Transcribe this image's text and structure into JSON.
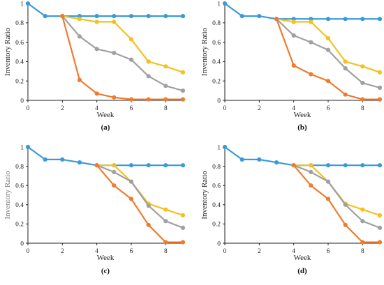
{
  "colors": {
    "blue": "#3a9ad9",
    "orange": "#ee7b2e",
    "gray": "#a0a0a0",
    "yellow": "#f5c020",
    "axis": "#222222",
    "ylabel_gray": "#7a7a7a"
  },
  "chart_data": [
    {
      "type": "line",
      "panel_label": "(a)",
      "xlabel": "Week",
      "ylabel": "Inventory Ratio",
      "ylabel_color": "dark",
      "xlim": [
        0,
        9
      ],
      "ylim": [
        0,
        1
      ],
      "xticks": [
        "0",
        "2",
        "4",
        "6",
        "8"
      ],
      "yticks": [
        "0",
        "0.2",
        "0.4",
        "0.6",
        "0.8",
        "1"
      ],
      "x": [
        0,
        1,
        2,
        3,
        4,
        5,
        6,
        7,
        8,
        9
      ],
      "series": [
        {
          "color_key": "blue",
          "start_index": 0,
          "values": [
            1,
            0.87,
            0.87,
            0.87,
            0.87,
            0.87,
            0.87,
            0.87,
            0.87,
            0.87
          ]
        },
        {
          "color_key": "yellow",
          "start_index": 2,
          "values": [
            1,
            0.87,
            0.87,
            0.84,
            0.81,
            0.81,
            0.63,
            0.4,
            0.35,
            0.29
          ]
        },
        {
          "color_key": "gray",
          "start_index": 2,
          "values": [
            1,
            0.87,
            0.87,
            0.66,
            0.53,
            0.49,
            0.42,
            0.25,
            0.15,
            0.1
          ]
        },
        {
          "color_key": "orange",
          "start_index": 2,
          "values": [
            1,
            0.87,
            0.87,
            0.21,
            0.07,
            0.03,
            0.01,
            0.01,
            0.01,
            0.01
          ]
        }
      ]
    },
    {
      "type": "line",
      "panel_label": "(b)",
      "xlabel": "Week",
      "ylabel": "Inventory Ratio",
      "ylabel_color": "dark",
      "xlim": [
        0,
        9
      ],
      "ylim": [
        0,
        1
      ],
      "xticks": [
        "0",
        "2",
        "4",
        "6",
        "8"
      ],
      "yticks": [
        "0",
        "0.2",
        "0.4",
        "0.6",
        "0.8",
        "1"
      ],
      "x": [
        0,
        1,
        2,
        3,
        4,
        5,
        6,
        7,
        8,
        9
      ],
      "series": [
        {
          "color_key": "blue",
          "start_index": 0,
          "values": [
            1,
            0.87,
            0.87,
            0.84,
            0.84,
            0.84,
            0.84,
            0.84,
            0.84,
            0.84
          ]
        },
        {
          "color_key": "yellow",
          "start_index": 3,
          "values": [
            1,
            0.87,
            0.87,
            0.84,
            0.81,
            0.81,
            0.64,
            0.4,
            0.35,
            0.29
          ]
        },
        {
          "color_key": "gray",
          "start_index": 3,
          "values": [
            1,
            0.87,
            0.87,
            0.84,
            0.67,
            0.6,
            0.52,
            0.33,
            0.18,
            0.13
          ]
        },
        {
          "color_key": "orange",
          "start_index": 3,
          "values": [
            1,
            0.87,
            0.87,
            0.84,
            0.36,
            0.27,
            0.2,
            0.06,
            0.01,
            0.01
          ]
        }
      ]
    },
    {
      "type": "line",
      "panel_label": "(c)",
      "xlabel": "Week",
      "ylabel": "Inventory Ratio",
      "ylabel_color": "gray",
      "xlim": [
        0,
        9
      ],
      "ylim": [
        0,
        1
      ],
      "xticks": [
        "0",
        "2",
        "4",
        "6",
        "8"
      ],
      "yticks": [
        "0",
        "0.2",
        "0.4",
        "0.6",
        "0.8",
        "1"
      ],
      "x": [
        0,
        1,
        2,
        3,
        4,
        5,
        6,
        7,
        8,
        9
      ],
      "series": [
        {
          "color_key": "blue",
          "start_index": 0,
          "values": [
            1,
            0.87,
            0.87,
            0.84,
            0.81,
            0.81,
            0.81,
            0.81,
            0.81,
            0.81
          ]
        },
        {
          "color_key": "yellow",
          "start_index": 4,
          "values": [
            1,
            0.87,
            0.87,
            0.84,
            0.81,
            0.81,
            0.64,
            0.41,
            0.35,
            0.29
          ]
        },
        {
          "color_key": "gray",
          "start_index": 4,
          "values": [
            1,
            0.87,
            0.87,
            0.84,
            0.81,
            0.74,
            0.64,
            0.39,
            0.23,
            0.16
          ]
        },
        {
          "color_key": "orange",
          "start_index": 4,
          "values": [
            1,
            0.87,
            0.87,
            0.84,
            0.81,
            0.6,
            0.46,
            0.19,
            0.01,
            0.01
          ]
        }
      ]
    },
    {
      "type": "line",
      "panel_label": "(d)",
      "xlabel": "Week",
      "ylabel": "Inventory Ratio",
      "ylabel_color": "dark",
      "xlim": [
        0,
        9
      ],
      "ylim": [
        0,
        1
      ],
      "xticks": [
        "0",
        "2",
        "4",
        "6",
        "8"
      ],
      "yticks": [
        "0",
        "0.2",
        "0.4",
        "0.6",
        "0.8",
        "1"
      ],
      "x": [
        0,
        1,
        2,
        3,
        4,
        5,
        6,
        7,
        8,
        9
      ],
      "series": [
        {
          "color_key": "blue",
          "start_index": 0,
          "values": [
            1,
            0.87,
            0.87,
            0.84,
            0.81,
            0.81,
            0.81,
            0.81,
            0.81,
            0.81
          ]
        },
        {
          "color_key": "yellow",
          "start_index": 4,
          "values": [
            1,
            0.87,
            0.87,
            0.84,
            0.81,
            0.81,
            0.64,
            0.41,
            0.35,
            0.29
          ]
        },
        {
          "color_key": "gray",
          "start_index": 4,
          "values": [
            1,
            0.87,
            0.87,
            0.84,
            0.81,
            0.74,
            0.64,
            0.4,
            0.23,
            0.16
          ]
        },
        {
          "color_key": "orange",
          "start_index": 4,
          "values": [
            1,
            0.87,
            0.87,
            0.84,
            0.81,
            0.6,
            0.46,
            0.19,
            0.01,
            0.01
          ]
        }
      ]
    }
  ]
}
